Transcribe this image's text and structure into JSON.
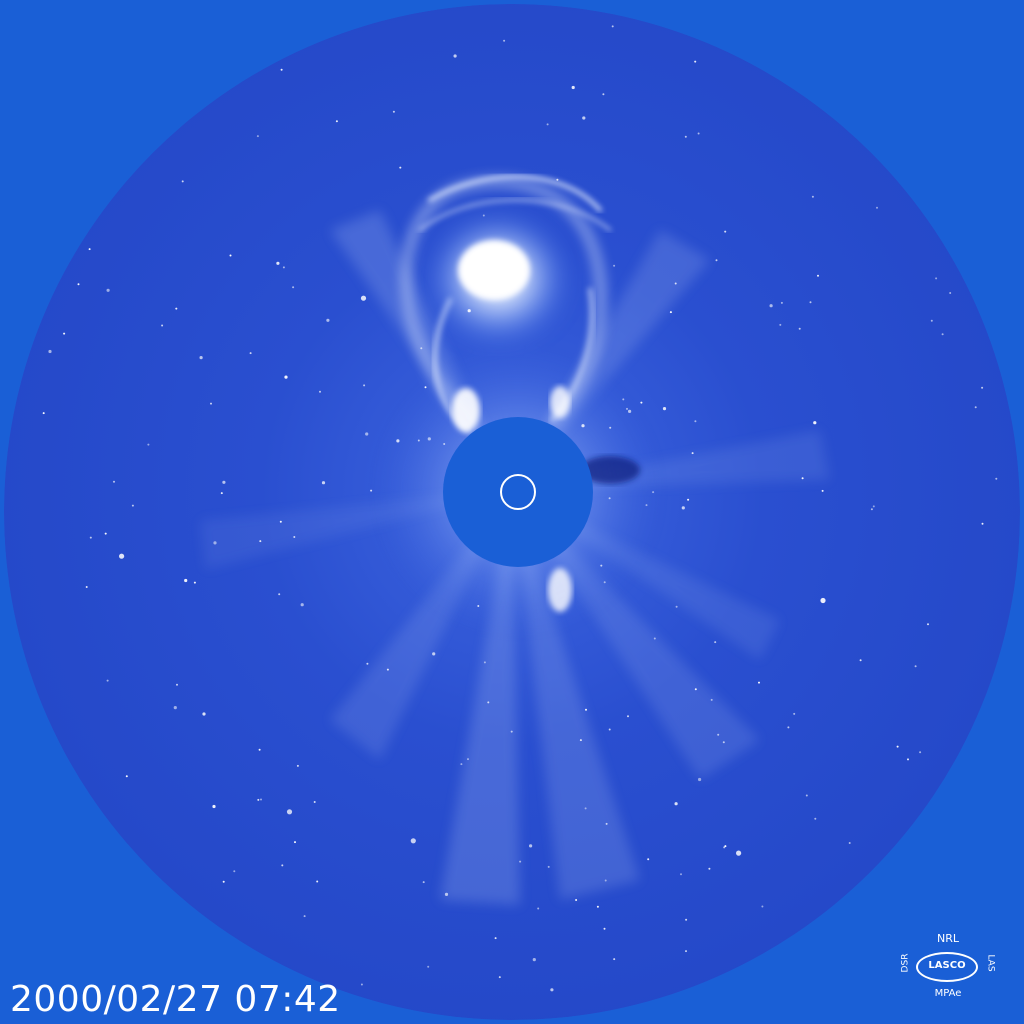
{
  "image": {
    "background_color": "#1a5fd6",
    "field_color": "#2a4fd0",
    "occulter_color": "#1a5fd6",
    "corona_color": "#dce9ff"
  },
  "timestamp": "2000/02/27 07:42",
  "logo": {
    "top": "NRL",
    "center": "LASCO",
    "left": "DSR",
    "right": "LAS",
    "bottom": "MPAe"
  }
}
